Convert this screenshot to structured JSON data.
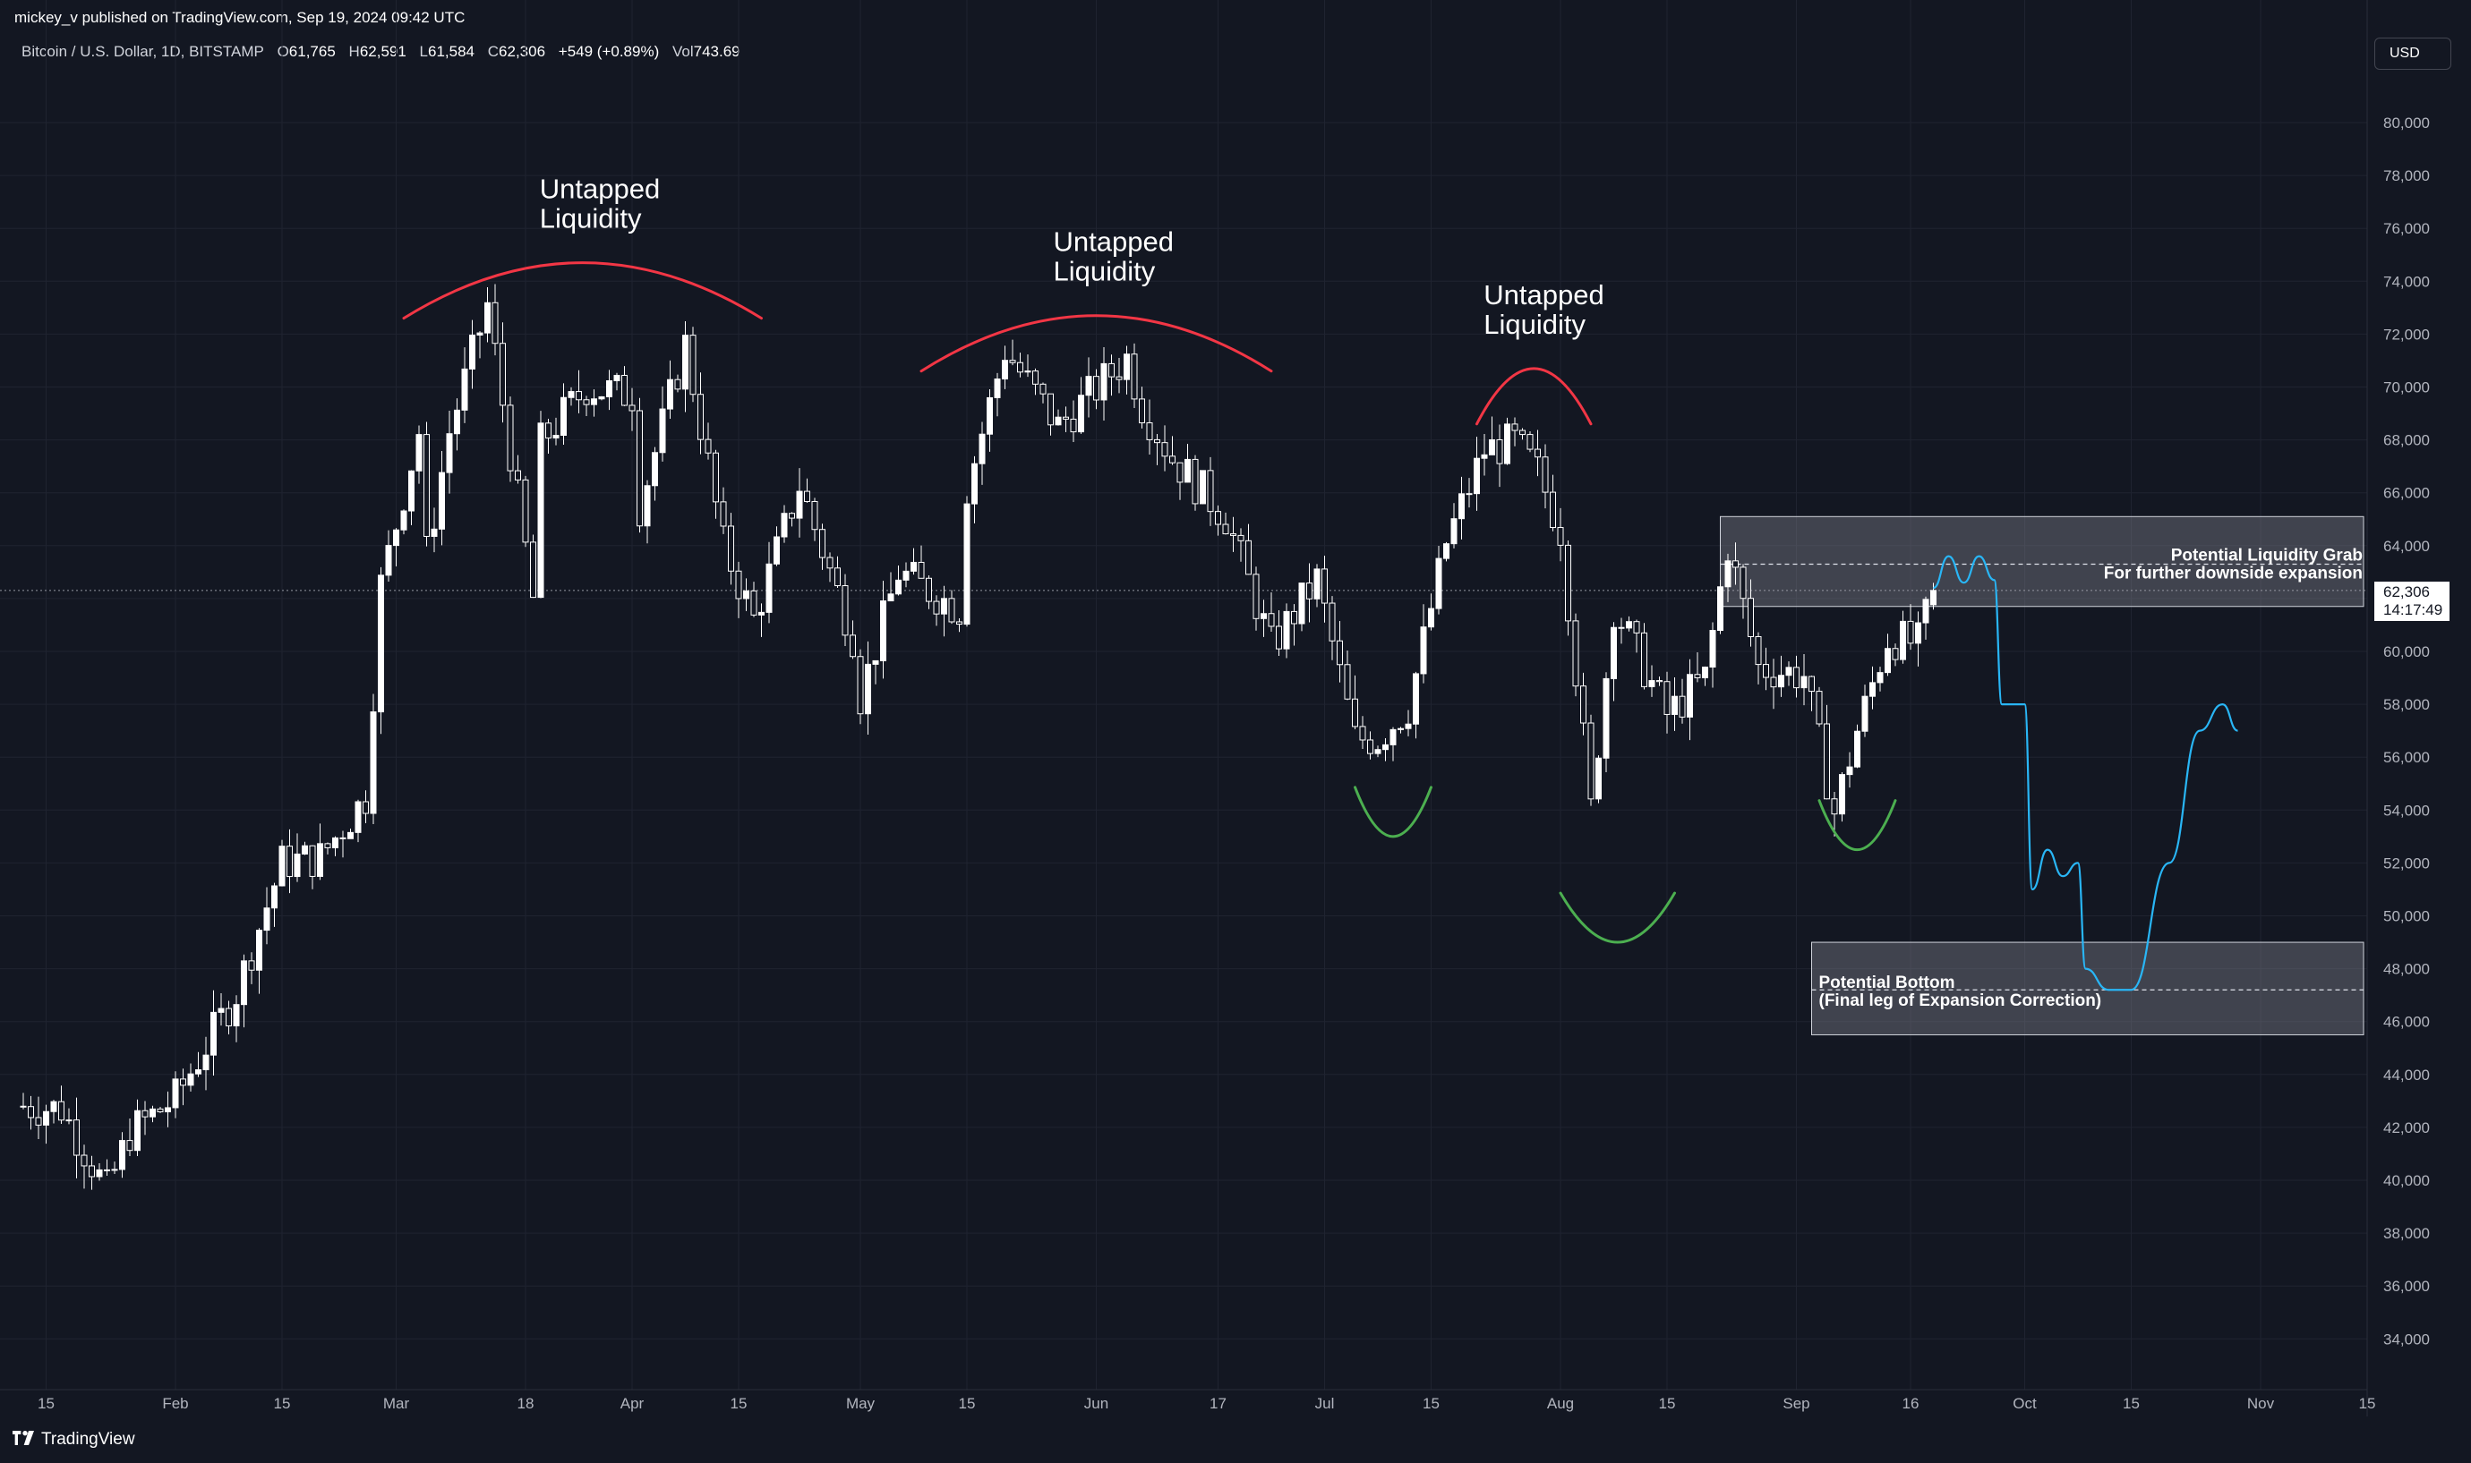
{
  "header": {
    "published": "mickey_v published on TradingView.com, Sep 19, 2024 09:42 UTC"
  },
  "legend": {
    "symbol": "Bitcoin / U.S. Dollar, 1D, BITSTAMP",
    "o_label": "O",
    "o_value": "61,765",
    "h_label": "H",
    "h_value": "62,591",
    "l_label": "L",
    "l_value": "61,584",
    "c_label": "C",
    "c_value": "62,306",
    "change": "+549 (+0.89%)",
    "vol_label": "Vol",
    "vol_value": "743.69"
  },
  "currency_button": "USD",
  "price_tag": {
    "price": "62,306",
    "countdown": "14:17:49"
  },
  "footer": {
    "brand": "TradingView"
  },
  "colors": {
    "background": "#131722",
    "candle": "#ffffff",
    "resistance_arc": "#f23645",
    "support_arc": "#4caf50",
    "projection": "#29b6f6",
    "zone_fill": "#787b86"
  },
  "annotations": {
    "untapped_1": [
      "Untapped",
      "Liquidity"
    ],
    "untapped_2": [
      "Untapped",
      "Liquidity"
    ],
    "untapped_3": [
      "Untapped",
      "Liquidity"
    ],
    "grab_zone": [
      "Potential Liquidity Grab",
      "For further downside expansion"
    ],
    "bottom_zone": [
      "Potential Bottom",
      "(Final leg of Expansion Correction)"
    ]
  },
  "chart_data": {
    "type": "candlestick",
    "symbol": "BTCUSD",
    "interval": "1D",
    "y_ticks": [
      34000,
      36000,
      38000,
      40000,
      42000,
      44000,
      46000,
      48000,
      50000,
      52000,
      54000,
      56000,
      58000,
      60000,
      62000,
      64000,
      66000,
      68000,
      70000,
      72000,
      74000,
      76000,
      78000,
      80000
    ],
    "ylim": [
      32500,
      81800
    ],
    "x_ticks": [
      {
        "label": "15",
        "date": "2024-01-15"
      },
      {
        "label": "Feb",
        "date": "2024-02-01"
      },
      {
        "label": "15",
        "date": "2024-02-15"
      },
      {
        "label": "Mar",
        "date": "2024-03-01"
      },
      {
        "label": "18",
        "date": "2024-03-18"
      },
      {
        "label": "Apr",
        "date": "2024-04-01"
      },
      {
        "label": "15",
        "date": "2024-04-15"
      },
      {
        "label": "May",
        "date": "2024-05-01"
      },
      {
        "label": "15",
        "date": "2024-05-15"
      },
      {
        "label": "Jun",
        "date": "2024-06-01"
      },
      {
        "label": "17",
        "date": "2024-06-17"
      },
      {
        "label": "Jul",
        "date": "2024-07-01"
      },
      {
        "label": "15",
        "date": "2024-07-15"
      },
      {
        "label": "Aug",
        "date": "2024-08-01"
      },
      {
        "label": "15",
        "date": "2024-08-15"
      },
      {
        "label": "Sep",
        "date": "2024-09-01"
      },
      {
        "label": "16",
        "date": "2024-09-16"
      },
      {
        "label": "Oct",
        "date": "2024-10-01"
      },
      {
        "label": "15",
        "date": "2024-10-15"
      },
      {
        "label": "Nov",
        "date": "2024-11-01"
      },
      {
        "label": "15",
        "date": "2024-11-15"
      }
    ],
    "last_price": 62306,
    "close_series": [
      {
        "date": "2024-01-12",
        "close": 42800
      },
      {
        "date": "2024-01-17",
        "close": 42700
      },
      {
        "date": "2024-01-23",
        "close": 39600
      },
      {
        "date": "2024-01-26",
        "close": 41800
      },
      {
        "date": "2024-02-01",
        "close": 43100
      },
      {
        "date": "2024-02-09",
        "close": 47100
      },
      {
        "date": "2024-02-15",
        "close": 52000
      },
      {
        "date": "2024-02-20",
        "close": 52200
      },
      {
        "date": "2024-02-26",
        "close": 54500
      },
      {
        "date": "2024-02-28",
        "close": 62500
      },
      {
        "date": "2024-03-04",
        "close": 68300
      },
      {
        "date": "2024-03-05",
        "close": 63700
      },
      {
        "date": "2024-03-08",
        "close": 68300
      },
      {
        "date": "2024-03-13",
        "close": 73100
      },
      {
        "date": "2024-03-19",
        "close": 62000
      },
      {
        "date": "2024-03-20",
        "close": 67900
      },
      {
        "date": "2024-03-26",
        "close": 70000
      },
      {
        "date": "2024-04-01",
        "close": 69700
      },
      {
        "date": "2024-04-02",
        "close": 65500
      },
      {
        "date": "2024-04-08",
        "close": 71600
      },
      {
        "date": "2024-04-13",
        "close": 64000
      },
      {
        "date": "2024-04-17",
        "close": 61200
      },
      {
        "date": "2024-04-23",
        "close": 66300
      },
      {
        "date": "2024-04-30",
        "close": 60600
      },
      {
        "date": "2024-05-01",
        "close": 58300
      },
      {
        "date": "2024-05-06",
        "close": 63000
      },
      {
        "date": "2024-05-14",
        "close": 61600
      },
      {
        "date": "2024-05-15",
        "close": 66200
      },
      {
        "date": "2024-05-20",
        "close": 71400
      },
      {
        "date": "2024-05-27",
        "close": 68500
      },
      {
        "date": "2024-06-05",
        "close": 71100
      },
      {
        "date": "2024-06-07",
        "close": 69300
      },
      {
        "date": "2024-06-11",
        "close": 67300
      },
      {
        "date": "2024-06-18",
        "close": 65100
      },
      {
        "date": "2024-06-24",
        "close": 60200
      },
      {
        "date": "2024-06-30",
        "close": 62700
      },
      {
        "date": "2024-07-05",
        "close": 56700
      },
      {
        "date": "2024-07-08",
        "close": 56700
      },
      {
        "date": "2024-07-12",
        "close": 57900
      },
      {
        "date": "2024-07-17",
        "close": 64100
      },
      {
        "date": "2024-07-22",
        "close": 67600
      },
      {
        "date": "2024-07-26",
        "close": 67900
      },
      {
        "date": "2024-07-29",
        "close": 66800
      },
      {
        "date": "2024-08-01",
        "close": 64600
      },
      {
        "date": "2024-08-05",
        "close": 54000
      },
      {
        "date": "2024-08-08",
        "close": 61700
      },
      {
        "date": "2024-08-15",
        "close": 57600
      },
      {
        "date": "2024-08-20",
        "close": 59000
      },
      {
        "date": "2024-08-23",
        "close": 64000
      },
      {
        "date": "2024-08-27",
        "close": 59400
      },
      {
        "date": "2024-09-02",
        "close": 59100
      },
      {
        "date": "2024-09-06",
        "close": 53900
      },
      {
        "date": "2024-09-09",
        "close": 57000
      },
      {
        "date": "2024-09-13",
        "close": 60500
      },
      {
        "date": "2024-09-17",
        "close": 60300
      },
      {
        "date": "2024-09-19",
        "close": 62306
      }
    ],
    "zones": [
      {
        "label": "Potential Liquidity Grab / For further downside expansion",
        "from": "2024-08-22",
        "to": "2024-11-20",
        "y_low": 61700,
        "y_high": 65100,
        "mid": 63300
      },
      {
        "label": "Potential Bottom / (Final leg of Expansion Correction)",
        "from": "2024-09-03",
        "to": "2024-11-20",
        "y_low": 45500,
        "y_high": 49000,
        "mid": 47200
      }
    ],
    "resistance_arcs": [
      {
        "label": "Untapped Liquidity",
        "from": "2024-03-02",
        "to": "2024-04-18",
        "peak": 74700
      },
      {
        "label": "Untapped Liquidity",
        "from": "2024-05-09",
        "to": "2024-06-24",
        "peak": 72700
      },
      {
        "label": "Untapped Liquidity",
        "from": "2024-07-21",
        "to": "2024-08-05",
        "peak": 70700
      }
    ],
    "support_arcs": [
      {
        "from": "2024-07-05",
        "to": "2024-07-15",
        "trough": 53000
      },
      {
        "from": "2024-08-01",
        "to": "2024-08-16",
        "trough": 49000
      },
      {
        "from": "2024-09-04",
        "to": "2024-09-14",
        "trough": 52500
      }
    ],
    "projection_path": [
      {
        "date": "2024-09-19",
        "value": 62400
      },
      {
        "date": "2024-09-21",
        "value": 63600
      },
      {
        "date": "2024-09-23",
        "value": 62600
      },
      {
        "date": "2024-09-25",
        "value": 63600
      },
      {
        "date": "2024-09-27",
        "value": 62700
      },
      {
        "date": "2024-09-28",
        "value": 58000
      },
      {
        "date": "2024-10-01",
        "value": 58000
      },
      {
        "date": "2024-10-02",
        "value": 51000
      },
      {
        "date": "2024-10-04",
        "value": 52500
      },
      {
        "date": "2024-10-06",
        "value": 51500
      },
      {
        "date": "2024-10-08",
        "value": 52000
      },
      {
        "date": "2024-10-09",
        "value": 48000
      },
      {
        "date": "2024-10-12",
        "value": 47200
      },
      {
        "date": "2024-10-15",
        "value": 47200
      },
      {
        "date": "2024-10-20",
        "value": 52000
      },
      {
        "date": "2024-10-24",
        "value": 57000
      },
      {
        "date": "2024-10-27",
        "value": 58000
      },
      {
        "date": "2024-10-29",
        "value": 57000
      }
    ]
  }
}
